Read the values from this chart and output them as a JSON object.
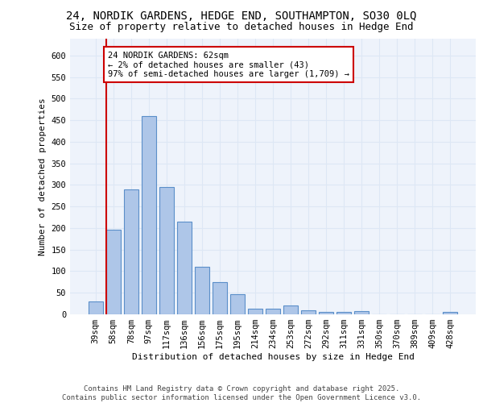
{
  "title_line1": "24, NORDIK GARDENS, HEDGE END, SOUTHAMPTON, SO30 0LQ",
  "title_line2": "Size of property relative to detached houses in Hedge End",
  "xlabel": "Distribution of detached houses by size in Hedge End",
  "ylabel": "Number of detached properties",
  "categories": [
    "39sqm",
    "58sqm",
    "78sqm",
    "97sqm",
    "117sqm",
    "136sqm",
    "156sqm",
    "175sqm",
    "195sqm",
    "214sqm",
    "234sqm",
    "253sqm",
    "272sqm",
    "292sqm",
    "311sqm",
    "331sqm",
    "350sqm",
    "370sqm",
    "389sqm",
    "409sqm",
    "428sqm"
  ],
  "values": [
    30,
    197,
    290,
    460,
    295,
    215,
    110,
    75,
    47,
    13,
    13,
    20,
    10,
    6,
    5,
    7,
    0,
    0,
    0,
    0,
    5
  ],
  "bar_color": "#aec6e8",
  "bar_edge_color": "#5b8fc9",
  "grid_color": "#dde7f5",
  "background_color": "#eef3fb",
  "annotation_box_text": "24 NORDIK GARDENS: 62sqm\n← 2% of detached houses are smaller (43)\n97% of semi-detached houses are larger (1,709) →",
  "annotation_box_color": "#cc0000",
  "ref_line_color": "#cc0000",
  "ylim": [
    0,
    640
  ],
  "yticks": [
    0,
    50,
    100,
    150,
    200,
    250,
    300,
    350,
    400,
    450,
    500,
    550,
    600
  ],
  "footer_line1": "Contains HM Land Registry data © Crown copyright and database right 2025.",
  "footer_line2": "Contains public sector information licensed under the Open Government Licence v3.0.",
  "title_fontsize": 10,
  "subtitle_fontsize": 9,
  "axis_label_fontsize": 8,
  "tick_fontsize": 7.5,
  "annotation_fontsize": 7.5,
  "footer_fontsize": 6.5
}
